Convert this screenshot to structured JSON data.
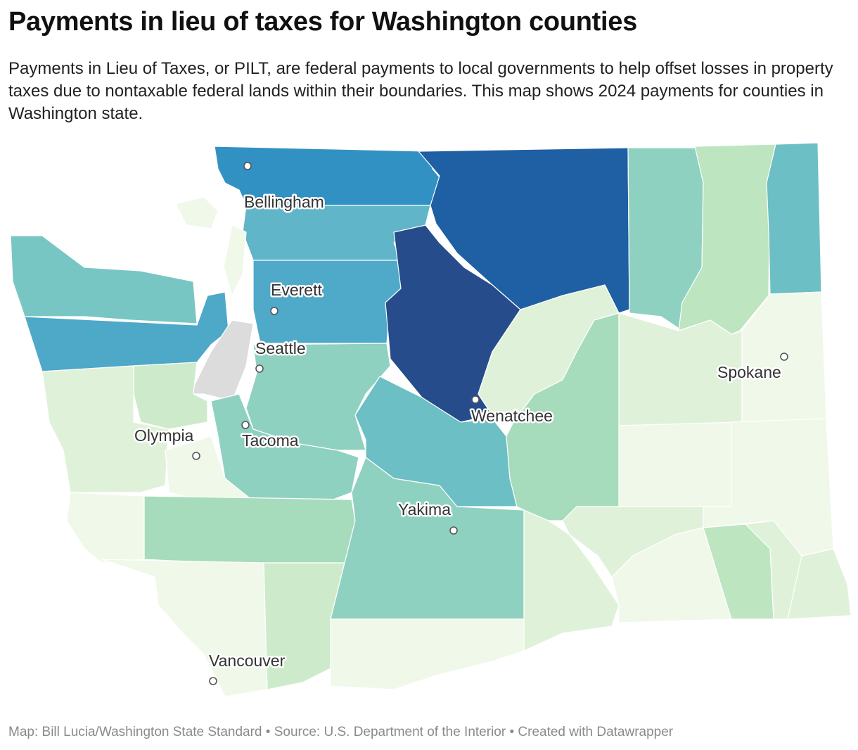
{
  "header": {
    "title": "Payments in lieu of taxes for Washington counties",
    "subtitle": "Payments in Lieu of Taxes, or PILT, are federal payments to local governments to help offset losses in property taxes due to nontaxable federal lands within their boundaries. This map shows 2024 payments for counties in Washington state."
  },
  "cities": [
    {
      "label": "Bellingham"
    },
    {
      "label": "Everett"
    },
    {
      "label": "Seattle"
    },
    {
      "label": "Olympia"
    },
    {
      "label": "Tacoma"
    },
    {
      "label": "Wenatchee"
    },
    {
      "label": "Yakima"
    },
    {
      "label": "Spokane"
    },
    {
      "label": "Vancouver"
    }
  ],
  "footer": "Map: Bill Lucia/Washington State Standard • Source: U.S. Department of the Interior • Created with Datawrapper"
}
